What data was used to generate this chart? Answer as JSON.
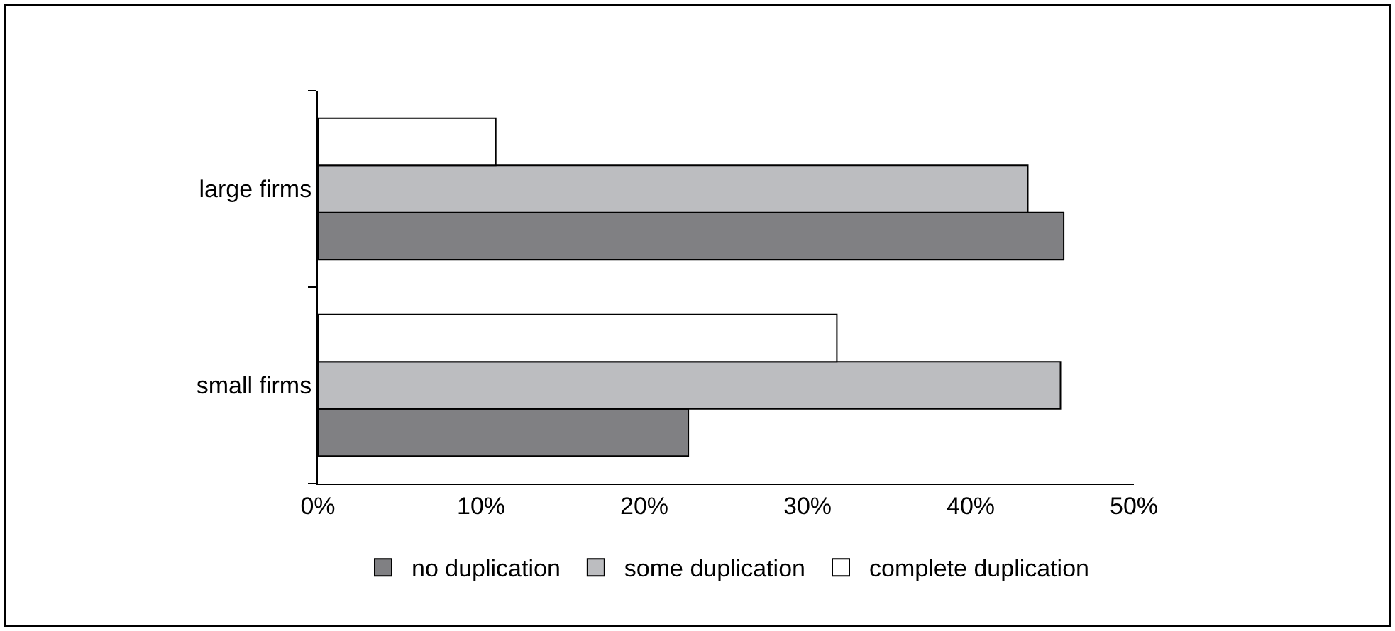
{
  "chart_data": {
    "type": "bar",
    "orientation": "horizontal",
    "categories": [
      "large firms",
      "small firms"
    ],
    "series": [
      {
        "name": "no duplication",
        "color": "#808083",
        "values": [
          45.7,
          22.7
        ]
      },
      {
        "name": "some duplication",
        "color": "#bcbdc0",
        "values": [
          43.5,
          45.5
        ]
      },
      {
        "name": "complete duplication",
        "color": "#ffffff",
        "values": [
          10.9,
          31.8
        ]
      }
    ],
    "xlim": [
      0,
      50
    ],
    "xticks": [
      {
        "value": 0,
        "label": "0%"
      },
      {
        "value": 10,
        "label": "10%"
      },
      {
        "value": 20,
        "label": "20%"
      },
      {
        "value": 30,
        "label": "30%"
      },
      {
        "value": 40,
        "label": "40%"
      },
      {
        "value": 50,
        "label": "50%"
      }
    ],
    "grid": false,
    "legend": "bottom"
  }
}
